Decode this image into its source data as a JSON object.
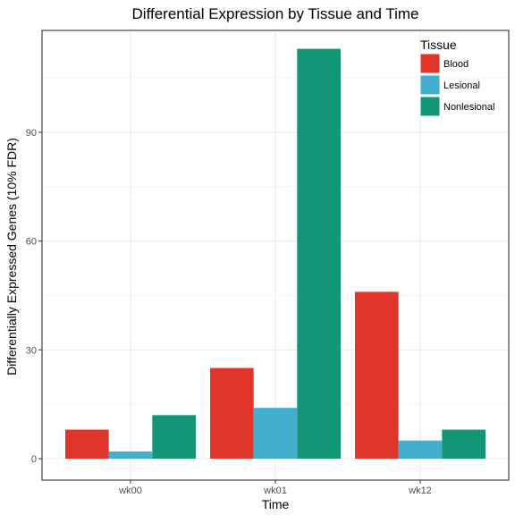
{
  "chart_data": {
    "type": "bar",
    "title": "Differential Expression by Tissue and Time",
    "xlabel": "Time",
    "ylabel": "Differentially Expressed Genes (10% FDR)",
    "categories": [
      "wk00",
      "wk01",
      "wk12"
    ],
    "series": [
      {
        "name": "Blood",
        "values": [
          8,
          25,
          46
        ],
        "color": "#e0352b"
      },
      {
        "name": "Lesional",
        "values": [
          2,
          14,
          5
        ],
        "color": "#44aecf"
      },
      {
        "name": "Nonlesional",
        "values": [
          12,
          113,
          8
        ],
        "color": "#139676"
      }
    ],
    "ylim": [
      0,
      116
    ],
    "yticks": [
      0,
      30,
      60,
      90
    ],
    "grid": true,
    "legend": {
      "title": "Tissue",
      "placement": "top-right"
    }
  }
}
